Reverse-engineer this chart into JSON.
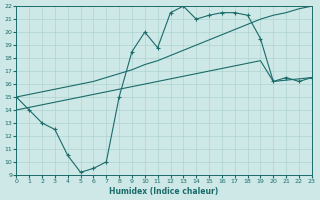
{
  "xlabel": "Humidex (Indice chaleur)",
  "bg_color": "#cde8e6",
  "grid_color": "#afd4d0",
  "line_color": "#1a6b6a",
  "xlim": [
    0,
    23
  ],
  "ylim": [
    9,
    22
  ],
  "xticks": [
    0,
    1,
    2,
    3,
    4,
    5,
    6,
    7,
    8,
    9,
    10,
    11,
    12,
    13,
    14,
    15,
    16,
    17,
    18,
    19,
    20,
    21,
    22,
    23
  ],
  "yticks": [
    9,
    10,
    11,
    12,
    13,
    14,
    15,
    16,
    17,
    18,
    19,
    20,
    21,
    22
  ],
  "line_zigzag_x": [
    0,
    1,
    2,
    3,
    4,
    5,
    6,
    7,
    8,
    9,
    10,
    11,
    12,
    13,
    14,
    15,
    16,
    17,
    18,
    19,
    20,
    21,
    22,
    23
  ],
  "line_zigzag_y": [
    15,
    14,
    13,
    12.5,
    10.5,
    9.2,
    9.5,
    10.0,
    15.0,
    18.5,
    20.0,
    18.8,
    21.5,
    22.0,
    21.0,
    21.3,
    21.5,
    21.5,
    21.3,
    19.5,
    16.2,
    16.5,
    16.2,
    16.5
  ],
  "line_upper_x": [
    0,
    1,
    2,
    3,
    4,
    5,
    6,
    7,
    8,
    9,
    10,
    11,
    12,
    13,
    14,
    15,
    16,
    17,
    18,
    19,
    20,
    21,
    22,
    23
  ],
  "line_upper_y": [
    15,
    15.2,
    15.4,
    15.6,
    15.8,
    16.0,
    16.2,
    16.5,
    16.8,
    17.1,
    17.5,
    17.8,
    18.2,
    18.6,
    19.0,
    19.4,
    19.8,
    20.2,
    20.6,
    21.0,
    21.3,
    21.5,
    21.8,
    22.0
  ],
  "line_lower_x": [
    0,
    1,
    2,
    3,
    4,
    5,
    6,
    7,
    8,
    9,
    10,
    11,
    12,
    13,
    14,
    15,
    16,
    17,
    18,
    19,
    20,
    21,
    22,
    23
  ],
  "line_lower_y": [
    14.0,
    14.2,
    14.4,
    14.6,
    14.8,
    15.0,
    15.2,
    15.4,
    15.6,
    15.8,
    16.0,
    16.2,
    16.4,
    16.6,
    16.8,
    17.0,
    17.2,
    17.4,
    17.6,
    17.8,
    16.2,
    16.3,
    16.4,
    16.5
  ]
}
